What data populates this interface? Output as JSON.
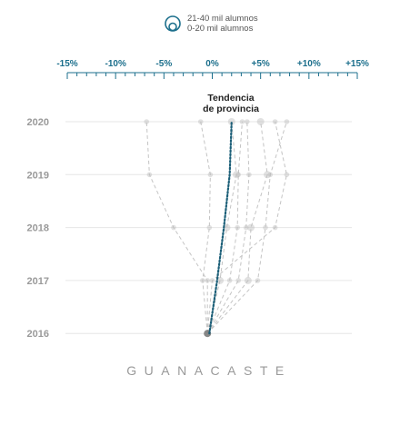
{
  "legend": {
    "large_label": "21-40 mil alumnos",
    "small_label": "0-20 mil alumnos"
  },
  "region_name": "GUANACASTE",
  "trend_annotation": [
    "Tendencia",
    "de provincia"
  ],
  "colors": {
    "accent": "#1c6f8c",
    "trend": "#1c5f78",
    "muted": "#9a9a9a",
    "canton": "#c4c4c4"
  },
  "chart_data": {
    "type": "scatter",
    "title": "",
    "xlim": [
      -15,
      15
    ],
    "x_ticks": [
      -15,
      -10,
      -5,
      0,
      5,
      10,
      15
    ],
    "x_tick_labels": [
      "-15%",
      "-10%",
      "-5%",
      "0%",
      "+5%",
      "+10%",
      "+15%"
    ],
    "y_categories": [
      "2020",
      "2019",
      "2018",
      "2017",
      "2016"
    ],
    "province_trend": {
      "name": "Tendencia de provincia",
      "points": [
        {
          "year": "2016",
          "value": -0.3
        },
        {
          "year": "2017",
          "value": 0.5
        },
        {
          "year": "2018",
          "value": 1.2
        },
        {
          "year": "2019",
          "value": 1.8
        },
        {
          "year": "2020",
          "value": 2.0
        }
      ]
    },
    "series": [
      {
        "size": "small",
        "values": [
          -0.5,
          -0.5,
          -4.0,
          -6.5,
          -6.8
        ]
      },
      {
        "size": "small",
        "values": [
          -0.5,
          -1.0,
          -0.3,
          -0.2,
          -1.2
        ]
      },
      {
        "size": "large",
        "values": [
          -0.5,
          0.8,
          1.5,
          2.5,
          2.0
        ]
      },
      {
        "size": "small",
        "values": [
          -0.5,
          1.8,
          2.6,
          2.7,
          3.1
        ]
      },
      {
        "size": "small",
        "values": [
          -0.5,
          2.7,
          3.5,
          3.8,
          3.6
        ]
      },
      {
        "size": "large",
        "values": [
          -0.5,
          3.7,
          4.0,
          5.7,
          5.0
        ]
      },
      {
        "size": "small",
        "values": [
          -0.5,
          4.7,
          5.5,
          6.0,
          7.7
        ]
      },
      {
        "size": "small",
        "values": [
          -0.5,
          0.0,
          6.5,
          7.7,
          6.5
        ]
      }
    ]
  }
}
